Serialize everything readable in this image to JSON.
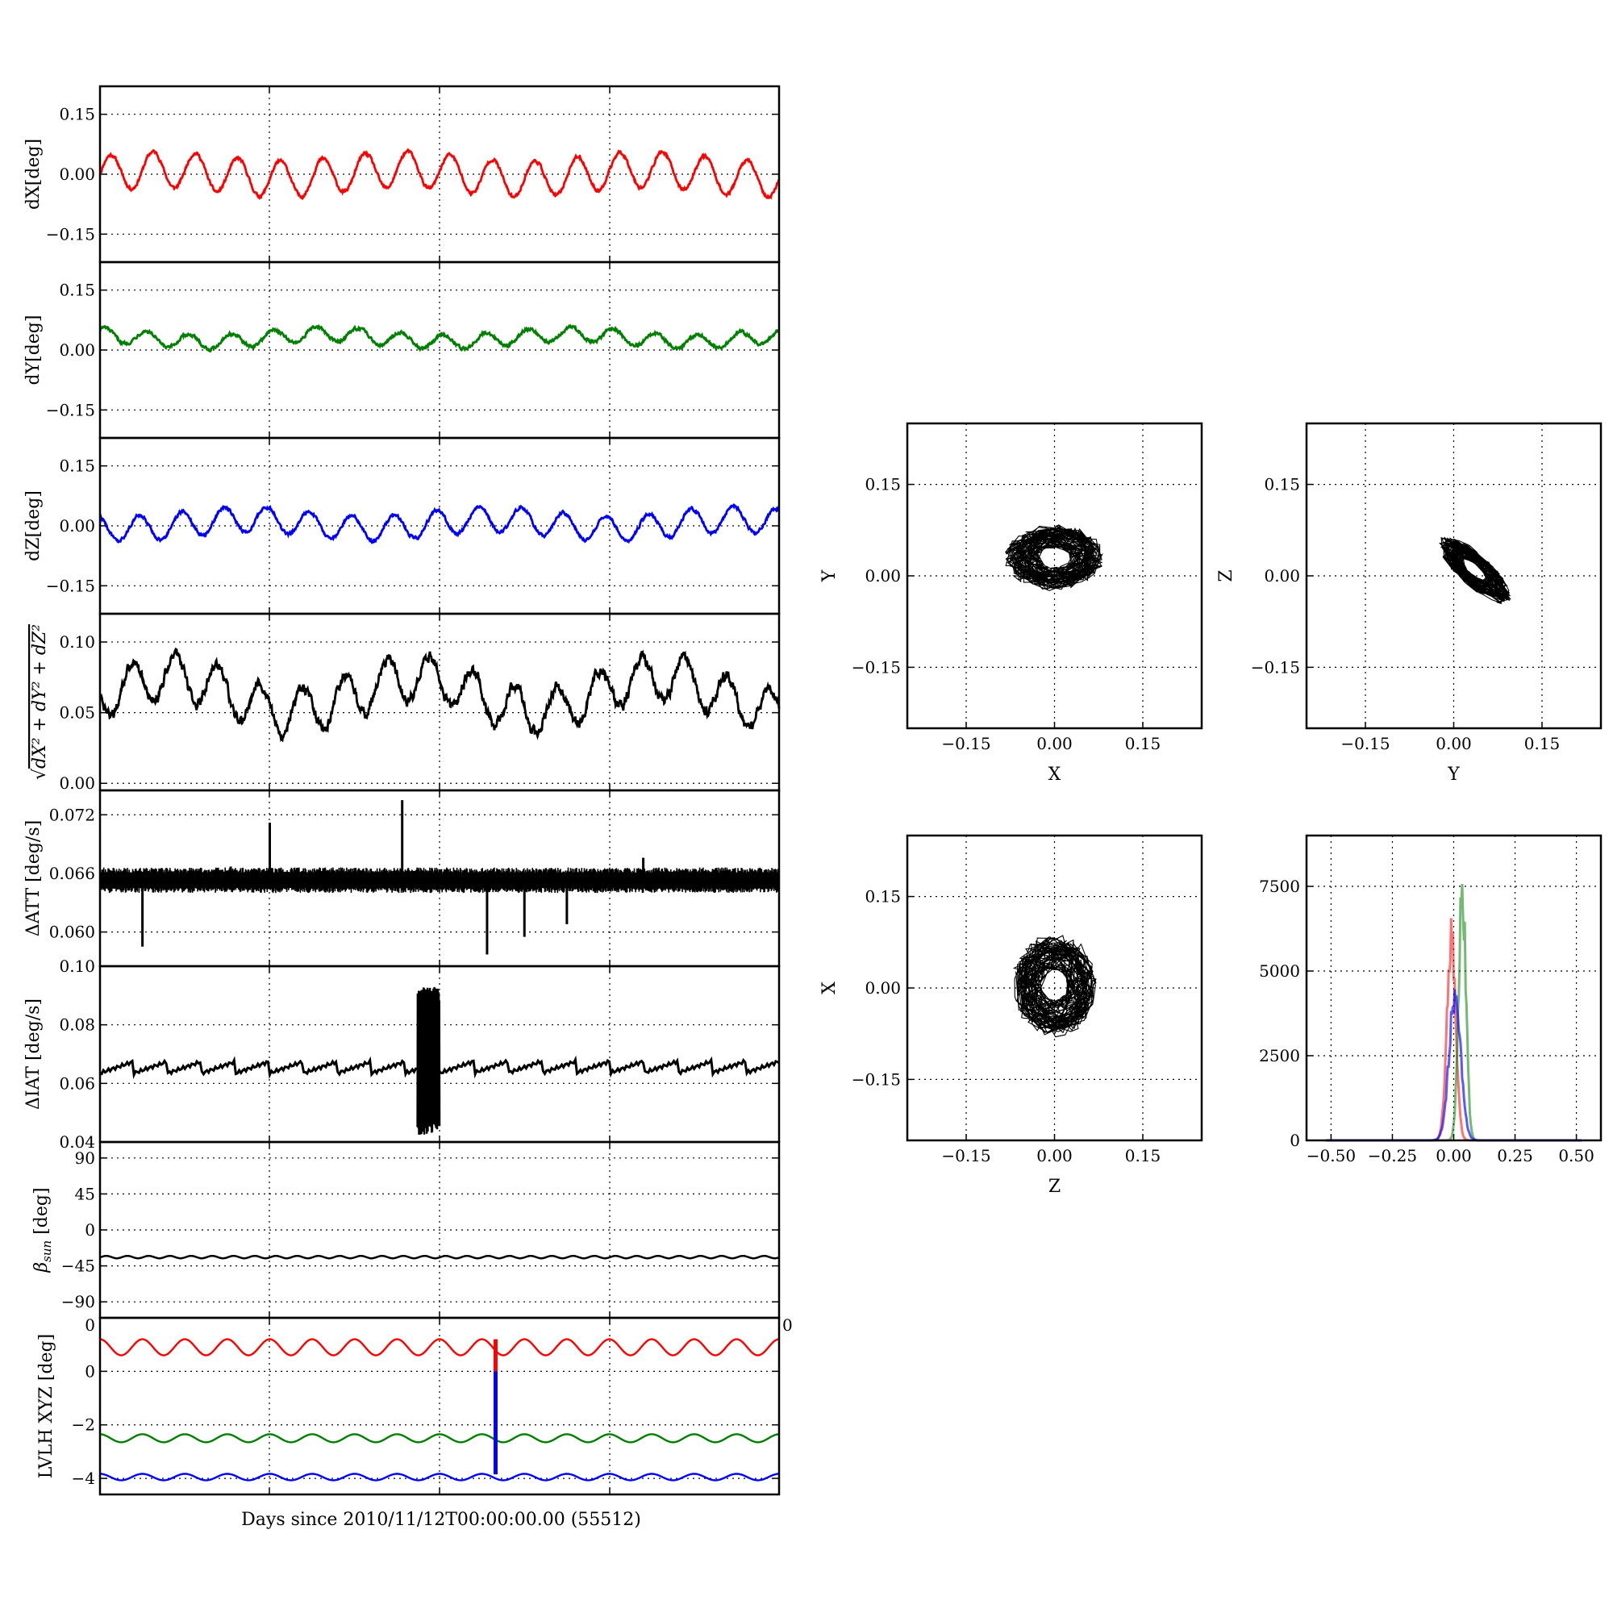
{
  "figure": {
    "xlabel": "Days since 2010/11/12T00:00:00.00 (55512)"
  },
  "chart_data": [
    {
      "type": "line",
      "name": "dX",
      "ylabel": "dX[deg]",
      "ylim": [
        -0.22,
        0.22
      ],
      "yticks": [
        -0.15,
        0.0,
        0.15
      ],
      "ytick_labels": [
        "−0.15",
        "0.00",
        "0.15"
      ],
      "grid": true,
      "xrange": [
        0,
        4
      ],
      "color": "#ff0000",
      "wave": {
        "mean": 0.0,
        "amp": 0.045,
        "cycles": 16,
        "noise": 0.006,
        "mod": 0.012
      },
      "series": [
        {
          "values": [
            -0.05,
            0.03,
            -0.05,
            0.04,
            -0.03,
            0.04,
            -0.02,
            0.03,
            -0.04,
            0.05,
            -0.04,
            0.06,
            -0.03,
            0.04,
            -0.03,
            0.04,
            -0.04,
            0.05,
            -0.06,
            0.06,
            -0.04,
            0.06,
            -0.05,
            0.07,
            -0.06,
            0.08,
            -0.05,
            0.06,
            -0.05,
            0.05,
            -0.06,
            0.05,
            -0.05
          ]
        }
      ]
    },
    {
      "type": "line",
      "name": "dY",
      "ylabel": "dY[deg]",
      "ylim": [
        -0.22,
        0.22
      ],
      "yticks": [
        -0.15,
        0.0,
        0.15
      ],
      "ytick_labels": [
        "−0.15",
        "0.00",
        "0.15"
      ],
      "grid": true,
      "xrange": [
        0,
        4
      ],
      "color": "#008000",
      "wave": {
        "mean": 0.03,
        "amp": 0.018,
        "cycles": 16,
        "noise": 0.006,
        "mod": 0.01
      },
      "series": [
        {
          "values": [
            0.03,
            0.07,
            0.06,
            0.05,
            0.04,
            0.05,
            0.04,
            0.03,
            0.05,
            0.04,
            0.03,
            0.05,
            0.03,
            0.0,
            0.07,
            0.03,
            0.02,
            0.05,
            0.01,
            0.04,
            0.0,
            0.07,
            0.01,
            0.05,
            0.0,
            0.04,
            -0.02,
            0.05,
            -0.03,
            0.03,
            -0.02,
            0.03,
            0.02
          ]
        }
      ]
    },
    {
      "type": "line",
      "name": "dZ",
      "ylabel": "dZ[deg]",
      "ylim": [
        -0.22,
        0.22
      ],
      "yticks": [
        -0.15,
        0.0,
        0.15
      ],
      "ytick_labels": [
        "−0.15",
        "0.00",
        "0.15"
      ],
      "grid": true,
      "xrange": [
        0,
        4
      ],
      "color": "#0000ff",
      "wave": {
        "mean": 0.005,
        "amp": 0.032,
        "cycles": 16,
        "noise": 0.006,
        "mod": 0.012
      },
      "series": [
        {
          "values": [
            0.02,
            0.05,
            -0.02,
            0.04,
            -0.01,
            0.03,
            -0.02,
            0.02,
            -0.03,
            0.03,
            -0.02,
            0.04,
            -0.03,
            0.04,
            -0.03,
            0.05,
            -0.04,
            0.05,
            -0.04,
            0.05,
            -0.04,
            0.05,
            -0.05,
            0.05,
            -0.05,
            0.06,
            -0.03,
            0.05,
            -0.04,
            0.05,
            -0.04,
            0.04,
            -0.03
          ]
        }
      ]
    },
    {
      "type": "line",
      "name": "norm",
      "ylabel_parts": [
        "√",
        "dX² + dY² + dZ²"
      ],
      "ylim": [
        -0.005,
        0.12
      ],
      "yticks": [
        0.0,
        0.05,
        0.1
      ],
      "ytick_labels": [
        "0.00",
        "0.05",
        "0.10"
      ],
      "grid": true,
      "xrange": [
        0,
        4
      ],
      "color": "#000000",
      "wave": {
        "mean": 0.063,
        "amp": 0.016,
        "cycles": 16,
        "noise": 0.006,
        "mod": 0.012
      },
      "series": [
        {
          "values": [
            0.06,
            0.08,
            0.06,
            0.07,
            0.05,
            0.08,
            0.06,
            0.07,
            0.04,
            0.08,
            0.05,
            0.09,
            0.04,
            0.09,
            0.05,
            0.1,
            0.05,
            0.08,
            0.01,
            0.08,
            0.04,
            0.09,
            0.05,
            0.09,
            0.06,
            0.1,
            0.04,
            0.08,
            0.02,
            0.09,
            0.05,
            0.08,
            0.06
          ]
        }
      ]
    },
    {
      "type": "line",
      "name": "dATT",
      "ylabel": "ΔATT [deg/s]",
      "ylim": [
        0.0565,
        0.0745
      ],
      "yticks": [
        0.06,
        0.066,
        0.072
      ],
      "ytick_labels": [
        "0.060",
        "0.066",
        "0.072"
      ],
      "grid": true,
      "xrange": [
        0,
        4
      ],
      "color": "#000000",
      "band": {
        "center": 0.0653,
        "half": 0.0013
      },
      "spikes": [
        {
          "x": 0.25,
          "y": 0.0585
        },
        {
          "x": 0.77,
          "y": 0.0667
        },
        {
          "x": 1.0,
          "y": 0.0712
        },
        {
          "x": 1.78,
          "y": 0.0735
        },
        {
          "x": 2.28,
          "y": 0.0577
        },
        {
          "x": 2.5,
          "y": 0.0595
        },
        {
          "x": 2.75,
          "y": 0.0608
        },
        {
          "x": 3.2,
          "y": 0.0676
        }
      ]
    },
    {
      "type": "line",
      "name": "dIAT",
      "ylabel": "ΔIAT [deg/s]",
      "ylim": [
        0.04,
        0.1
      ],
      "yticks": [
        0.04,
        0.06,
        0.08,
        0.1
      ],
      "ytick_labels": [
        "0.04",
        "0.06",
        "0.08",
        "0.10"
      ],
      "grid": true,
      "xrange": [
        0,
        4
      ],
      "color": "#000000",
      "sawtooth": {
        "low": 0.0635,
        "high": 0.0675,
        "period": 0.2
      },
      "burst": {
        "x0": 1.87,
        "x1": 2.0,
        "ymin": 0.0425,
        "ymax": 0.093
      }
    },
    {
      "type": "line",
      "name": "beta_sun",
      "ylabel": "β",
      "ylabel_sub": "sun",
      "ylabel_unit": " [deg]",
      "ylim": [
        -110,
        110
      ],
      "yticks": [
        -90,
        -45,
        0,
        45,
        90
      ],
      "ytick_labels": [
        "−90",
        "−45",
        "0",
        "45",
        "90"
      ],
      "grid": true,
      "xrange": [
        0,
        4
      ],
      "color": "#000000",
      "wave": {
        "mean": -34,
        "amp": 1.5,
        "cycles": 32,
        "noise": 0.0,
        "mod": 0.0
      }
    },
    {
      "type": "line",
      "name": "lvlh",
      "ylabel": "LVLH XYZ [deg]",
      "ylim": [
        -4.6,
        2.0
      ],
      "yticks": [
        -4,
        -2,
        0
      ],
      "ytick_labels": [
        "−4",
        "−2",
        "0"
      ],
      "grid": true,
      "xrange": [
        0,
        4
      ],
      "top_left_label": "0",
      "top_right_label": "0",
      "series": [
        {
          "color": "#ff0000",
          "mean": 0.9,
          "amp": 0.3,
          "cycles": 16
        },
        {
          "color": "#008000",
          "mean": -2.5,
          "amp": 0.15,
          "cycles": 16
        },
        {
          "color": "#0000ff",
          "mean": -3.95,
          "amp": 0.12,
          "cycles": 16
        }
      ],
      "event": {
        "x": 2.33,
        "red_top": 1.2,
        "red_bottom": 0.0,
        "blue_bottom": -3.85
      }
    },
    {
      "type": "scatter",
      "name": "x-y",
      "xlabel": "X",
      "ylabel": "Y",
      "xlim": [
        -0.25,
        0.25
      ],
      "ylim": [
        -0.25,
        0.25
      ],
      "ticks": [
        -0.15,
        0.0,
        0.15
      ],
      "tick_labels": [
        "−0.15",
        "0.00",
        "0.15"
      ],
      "grid": true,
      "blob": {
        "cx": 0.0,
        "cy": 0.03,
        "rx": 0.07,
        "ry": 0.045,
        "tilt": 0.0
      }
    },
    {
      "type": "scatter",
      "name": "y-z",
      "xlabel": "Y",
      "ylabel": "Z",
      "xlim": [
        -0.25,
        0.25
      ],
      "ylim": [
        -0.25,
        0.25
      ],
      "ticks": [
        -0.15,
        0.0,
        0.15
      ],
      "tick_labels": [
        "−0.15",
        "0.00",
        "0.15"
      ],
      "grid": true,
      "blob": {
        "cx": 0.035,
        "cy": 0.01,
        "rx": 0.065,
        "ry": 0.022,
        "tilt": -0.72
      }
    },
    {
      "type": "scatter",
      "name": "z-x",
      "xlabel": "Z",
      "ylabel": "X",
      "xlim": [
        -0.25,
        0.25
      ],
      "ylim": [
        -0.25,
        0.25
      ],
      "ticks": [
        -0.15,
        0.0,
        0.15
      ],
      "tick_labels": [
        "−0.15",
        "0.00",
        "0.15"
      ],
      "grid": true,
      "blob": {
        "cx": 0.0,
        "cy": 0.005,
        "rx": 0.06,
        "ry": 0.07,
        "tilt": 0.0
      }
    },
    {
      "type": "line",
      "name": "histogram",
      "xlim": [
        -0.6,
        0.6
      ],
      "ylim": [
        0,
        9000
      ],
      "xticks": [
        -0.5,
        -0.25,
        0.0,
        0.25,
        0.5
      ],
      "xtick_labels": [
        "−0.50",
        "−0.25",
        "0.00",
        "0.25",
        "0.50"
      ],
      "yticks": [
        0,
        2500,
        5000,
        7500
      ],
      "ytick_labels": [
        "0",
        "2500",
        "5000",
        "7500"
      ],
      "grid": true,
      "series": [
        {
          "color": "#ff0000",
          "opacity": 0.55,
          "center": -0.01,
          "sigma": 0.018,
          "peak": 6600
        },
        {
          "color": "#008000",
          "opacity": 0.55,
          "center": 0.035,
          "sigma": 0.015,
          "peak": 8100
        },
        {
          "color": "#0000ff",
          "opacity": 0.65,
          "center": 0.005,
          "sigma": 0.024,
          "peak": 4700
        }
      ]
    }
  ]
}
